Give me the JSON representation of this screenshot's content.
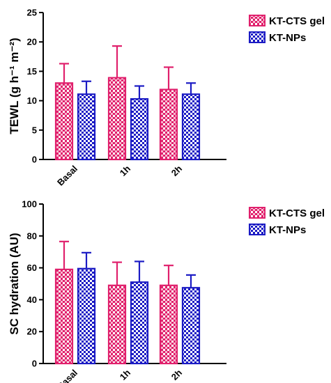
{
  "chart_data": [
    {
      "type": "bar",
      "ylabel": "TEWL (g h⁻¹ m⁻²)",
      "categories": [
        "Basal",
        "1h",
        "2h"
      ],
      "ylim": [
        0,
        25
      ],
      "yticks": [
        0,
        5,
        10,
        15,
        20,
        25
      ],
      "legend_position": "top-right",
      "series": [
        {
          "name": "KT-CTS gel",
          "values": [
            13.0,
            13.9,
            11.9
          ],
          "errors": [
            3.3,
            5.4,
            3.8
          ],
          "color": "#e0206c"
        },
        {
          "name": "KT-NPs",
          "values": [
            11.1,
            10.3,
            11.1
          ],
          "errors": [
            2.2,
            2.2,
            1.9
          ],
          "color": "#1b1bc4"
        }
      ]
    },
    {
      "type": "bar",
      "ylabel": "SC hydration (AU)",
      "categories": [
        "Basal",
        "1h",
        "2h"
      ],
      "ylim": [
        0,
        100
      ],
      "yticks": [
        0,
        20,
        40,
        60,
        80,
        100
      ],
      "legend_position": "top-right",
      "series": [
        {
          "name": "KT-CTS gel",
          "values": [
            59,
            49,
            49
          ],
          "errors": [
            17.5,
            14.5,
            12.5
          ],
          "color": "#e0206c"
        },
        {
          "name": "KT-NPs",
          "values": [
            59.5,
            51,
            47.5
          ],
          "errors": [
            10,
            13,
            8
          ],
          "color": "#1b1bc4"
        }
      ]
    }
  ]
}
